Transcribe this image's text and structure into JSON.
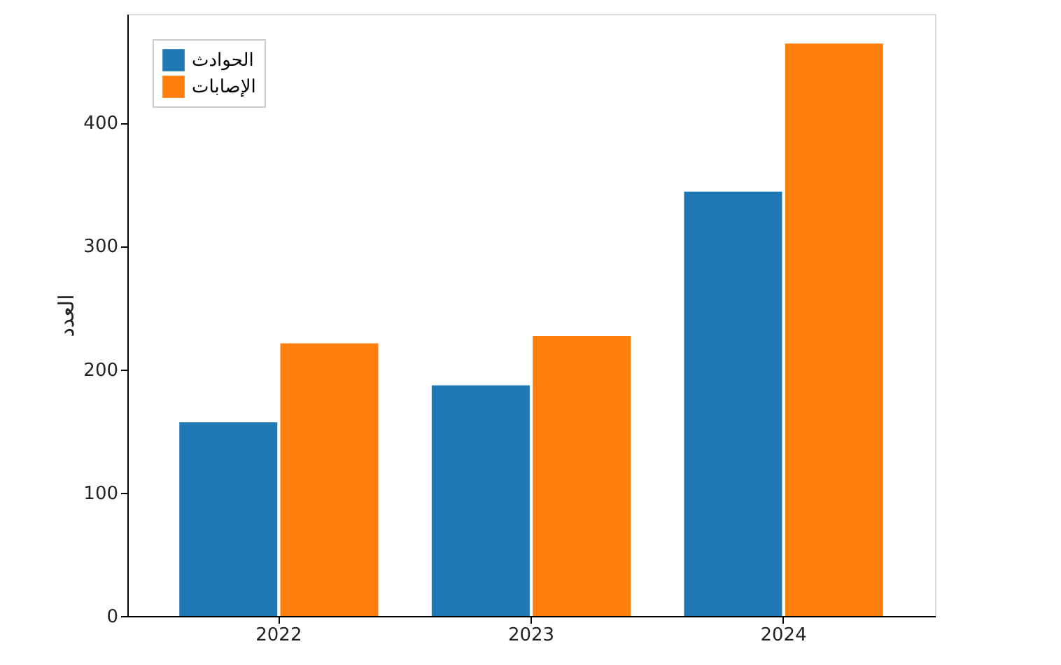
{
  "chart_data": {
    "type": "bar",
    "ylabel": "العدد",
    "categories": [
      "2022",
      "2023",
      "2024"
    ],
    "series": [
      {
        "name": "الحوادث",
        "color": "#1f77b4",
        "values": [
          157,
          187,
          344
        ]
      },
      {
        "name": "الإصابات",
        "color": "#ff7f0e",
        "values": [
          221,
          227,
          464
        ]
      }
    ],
    "ylim": [
      0,
      488
    ],
    "yticks": [
      0,
      100,
      200,
      300,
      400
    ],
    "grid": false,
    "legend": "top left"
  }
}
